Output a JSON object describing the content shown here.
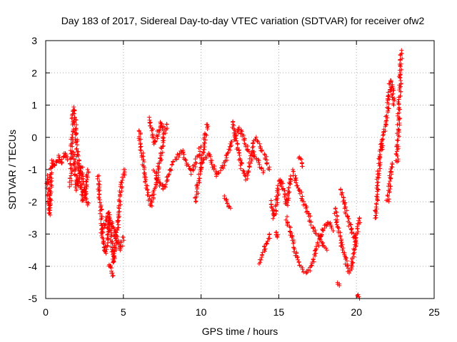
{
  "chart_data": {
    "type": "scatter",
    "marker": "+",
    "title": "Day 183 of 2017, Sidereal Day-to-day VTEC variation (SDTVAR) for receiver ofw2",
    "xlabel": "GPS time / hours",
    "ylabel": "SDTVAR / TECUs",
    "xlim": [
      0,
      25
    ],
    "ylim": [
      -5,
      3
    ],
    "xticks": [
      0,
      5,
      10,
      15,
      20,
      25
    ],
    "yticks": [
      -5,
      -4,
      -3,
      -2,
      -1,
      0,
      1,
      2,
      3
    ],
    "xtick_labels": [
      "0",
      "5",
      "10",
      "15",
      "20",
      "25"
    ],
    "ytick_labels": [
      "-5",
      "-4",
      "-3",
      "-2",
      "-1",
      "0",
      "1",
      "2",
      "3"
    ],
    "grid": true,
    "series": [
      {
        "name": "ofw2",
        "color": "#ff0000",
        "segments": [
          {
            "x": [
              0.1,
              0.15,
              0.2,
              0.25,
              0.3,
              0.35,
              0.4
            ],
            "y": [
              -1.2,
              -1.6,
              -2.0,
              -2.4,
              -1.8,
              -1.0,
              -0.8
            ]
          },
          {
            "x": [
              0.4,
              0.6,
              0.8,
              1.0,
              1.2,
              1.4
            ],
            "y": [
              -0.7,
              -0.9,
              -0.6,
              -0.8,
              -0.5,
              -0.7
            ]
          },
          {
            "x": [
              1.6,
              1.7,
              1.8,
              1.9,
              2.0,
              2.1,
              2.2,
              2.3,
              2.4,
              2.5,
              2.6,
              2.7
            ],
            "y": [
              -1.5,
              0.2,
              0.9,
              0.5,
              -0.3,
              -0.8,
              -1.2,
              -1.6,
              -2.0,
              -1.9,
              -1.4,
              -1.0
            ]
          },
          {
            "x": [
              1.8,
              1.9,
              2.0,
              2.1,
              2.3,
              2.5,
              2.7
            ],
            "y": [
              -0.5,
              -1.0,
              -1.6,
              -1.2,
              -0.9,
              -1.6,
              -2.1
            ]
          },
          {
            "x": [
              3.4,
              3.5,
              3.6,
              3.7,
              3.8,
              3.9,
              4.0,
              4.1,
              4.2,
              4.3,
              4.4,
              4.5,
              4.6,
              4.7,
              4.8,
              4.9,
              5.0,
              5.1
            ],
            "y": [
              -1.2,
              -2.0,
              -2.6,
              -3.2,
              -3.6,
              -3.4,
              -2.9,
              -2.5,
              -3.0,
              -3.5,
              -3.9,
              -3.3,
              -2.8,
              -2.4,
              -1.8,
              -1.4,
              -1.2,
              -1.0
            ]
          },
          {
            "x": [
              3.6,
              3.8,
              4.0,
              4.2,
              4.4,
              4.6,
              4.8,
              5.0
            ],
            "y": [
              -3.0,
              -2.7,
              -2.3,
              -2.6,
              -2.9,
              -3.2,
              -3.5,
              -3.1
            ]
          },
          {
            "x": [
              4.1,
              4.2,
              4.3
            ],
            "y": [
              -3.9,
              -4.1,
              -4.3
            ]
          },
          {
            "x": [
              6.0,
              6.2,
              6.4,
              6.6,
              6.8,
              7.0,
              7.2,
              7.4,
              7.6,
              7.8
            ],
            "y": [
              0.2,
              -0.5,
              -1.2,
              -1.8,
              -2.1,
              -1.6,
              -1.1,
              -0.6,
              0.0,
              0.4
            ]
          },
          {
            "x": [
              6.6,
              6.8,
              7.0,
              7.2,
              7.4,
              7.6
            ],
            "y": [
              0.6,
              0.3,
              -0.2,
              0.1,
              0.5,
              0.2
            ]
          },
          {
            "x": [
              7.0,
              7.3,
              7.6,
              7.9,
              8.2,
              8.5,
              8.8,
              9.1,
              9.4,
              9.7,
              10.0
            ],
            "y": [
              -1.0,
              -1.4,
              -1.6,
              -1.2,
              -0.8,
              -0.6,
              -0.4,
              -0.8,
              -1.1,
              -0.7,
              -0.3
            ]
          },
          {
            "x": [
              9.6,
              9.8,
              10.0,
              10.2,
              10.4
            ],
            "y": [
              -2.0,
              -1.5,
              -0.8,
              -0.2,
              0.4
            ]
          },
          {
            "x": [
              10.0,
              10.5,
              11.0,
              11.5,
              12.0,
              12.5,
              13.0,
              13.5,
              14.0
            ],
            "y": [
              -0.9,
              -0.5,
              -1.2,
              -0.8,
              -0.1,
              0.3,
              -0.4,
              -0.6,
              -1.1
            ]
          },
          {
            "x": [
              11.5,
              11.7,
              11.9
            ],
            "y": [
              -1.8,
              -2.1,
              -2.2
            ]
          },
          {
            "x": [
              12.0,
              12.3,
              12.6,
              12.9,
              13.2,
              13.5,
              13.8,
              14.1,
              14.4
            ],
            "y": [
              0.5,
              -0.2,
              -0.9,
              -1.3,
              -0.7,
              0.0,
              -0.3,
              -0.6,
              -1.0
            ]
          },
          {
            "x": [
              13.8,
              14.0,
              14.2,
              14.4
            ],
            "y": [
              -3.9,
              -3.6,
              -3.3,
              -3.0
            ]
          },
          {
            "x": [
              14.5,
              14.7,
              14.9,
              15.1,
              15.3,
              15.5,
              15.7,
              15.9
            ],
            "y": [
              -2.0,
              -2.5,
              -1.8,
              -1.3,
              -1.6,
              -2.1,
              -1.5,
              -1.0
            ]
          },
          {
            "x": [
              14.8,
              14.9
            ],
            "y": [
              -2.9,
              -3.1
            ]
          },
          {
            "x": [
              15.5,
              15.8,
              16.1,
              16.4,
              16.7,
              17.0,
              17.3,
              17.6,
              17.9,
              18.2,
              18.5
            ],
            "y": [
              -2.5,
              -3.0,
              -3.6,
              -4.0,
              -4.2,
              -4.1,
              -3.7,
              -3.2,
              -2.8,
              -2.6,
              -2.9
            ]
          },
          {
            "x": [
              16.0,
              16.3,
              16.6,
              16.9,
              17.2,
              17.5,
              17.8,
              18.1
            ],
            "y": [
              -1.2,
              -1.6,
              -2.0,
              -2.4,
              -2.8,
              -3.0,
              -3.3,
              -3.5
            ]
          },
          {
            "x": [
              16.3,
              16.5
            ],
            "y": [
              -0.6,
              -0.9
            ]
          },
          {
            "x": [
              18.6,
              18.8,
              19.0,
              19.2,
              19.4,
              19.6,
              19.8,
              20.0,
              20.2
            ],
            "y": [
              -2.2,
              -2.7,
              -3.2,
              -3.6,
              -4.0,
              -4.2,
              -3.7,
              -3.0,
              -2.5
            ]
          },
          {
            "x": [
              18.8,
              18.9
            ],
            "y": [
              -4.5,
              -4.6
            ]
          },
          {
            "x": [
              19.0,
              19.2,
              19.4,
              19.6,
              19.8,
              20.0
            ],
            "y": [
              -1.6,
              -2.0,
              -2.4,
              -2.8,
              -3.0,
              -3.3
            ]
          },
          {
            "x": [
              20.1,
              20.2
            ],
            "y": [
              -4.9,
              -5.0
            ]
          },
          {
            "x": [
              21.2,
              21.3,
              21.4,
              21.5,
              21.6
            ],
            "y": [
              -2.5,
              -2.0,
              -1.2,
              -0.6,
              -0.2
            ]
          },
          {
            "x": [
              21.6,
              21.8,
              22.0,
              22.1,
              22.2,
              22.3,
              22.4
            ],
            "y": [
              -0.4,
              0.2,
              0.8,
              1.3,
              1.8,
              1.5,
              1.0
            ]
          },
          {
            "x": [
              22.0,
              22.1,
              22.2,
              22.3
            ],
            "y": [
              -2.0,
              -1.6,
              -1.2,
              -0.8
            ]
          },
          {
            "x": [
              22.6,
              22.7,
              22.8,
              22.9
            ],
            "y": [
              -0.8,
              0.4,
              1.6,
              2.7
            ]
          }
        ]
      }
    ]
  }
}
